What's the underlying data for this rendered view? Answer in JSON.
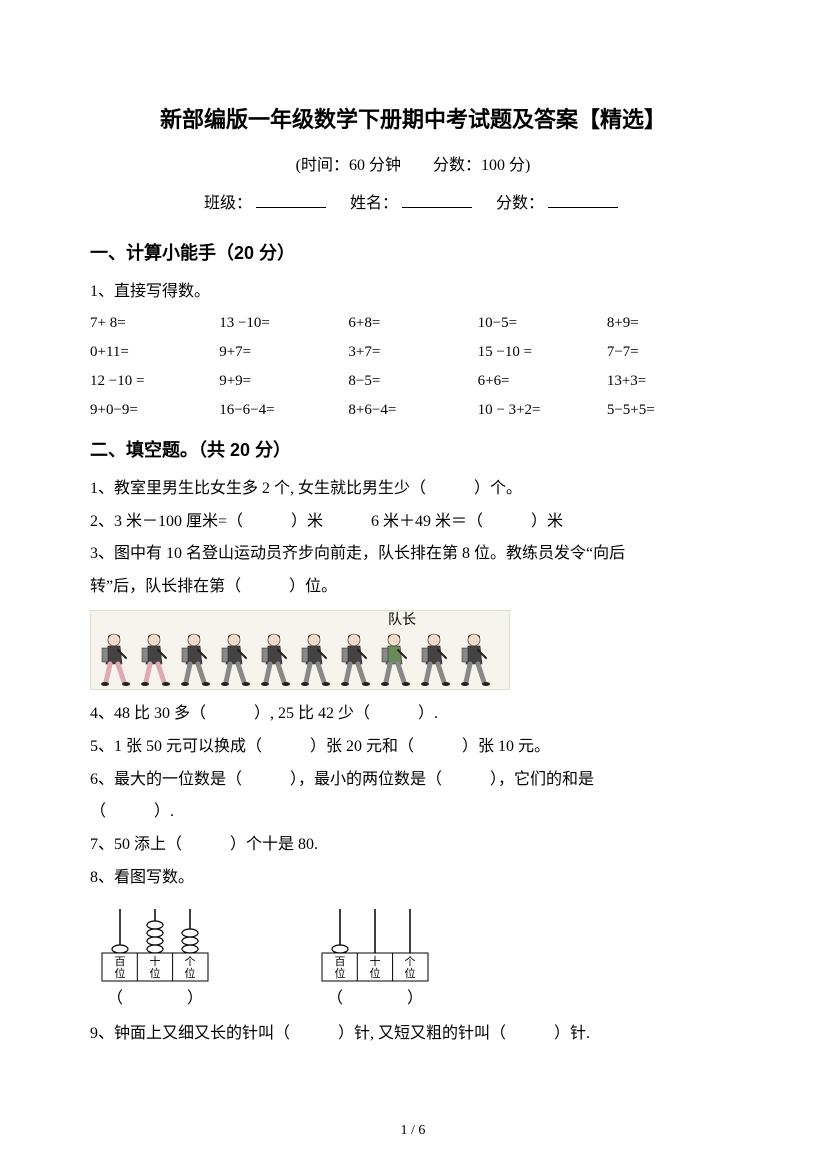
{
  "title": "新部编版一年级数学下册期中考试题及答案【精选】",
  "subtitle": "(时间：60 分钟　　分数：100 分)",
  "info": {
    "class_label": "班级：",
    "name_label": "姓名：",
    "score_label": "分数："
  },
  "section1": {
    "heading": "一、计算小能手（20 分）",
    "q1_label": "1、直接写得数。",
    "rows": [
      [
        "7+ 8=",
        "13 −10=",
        "6+8=",
        "10−5=",
        "8+9="
      ],
      [
        "0+11=",
        "9+7=",
        "3+7=",
        "15 −10 =",
        "7−7="
      ],
      [
        "12 −10 =",
        "9+9=",
        "8−5=",
        "6+6=",
        "13+3="
      ],
      [
        "9+0−9=",
        "16−6−4=",
        "8+6−4=",
        "10 − 3+2=",
        "5−5+5="
      ]
    ]
  },
  "section2": {
    "heading": "二、填空题。（共 20 分）",
    "q1": "1、教室里男生比女生多 2 个, 女生就比男生少（　　　）个。",
    "q2": "2、3 米－100 厘米=（　　　）米　　　6 米＋49 米＝（　　　）米",
    "q3a": "3、图中有 10 名登山运动员齐步向前走，队长排在第 8 位。教练员发令“向后",
    "q3b": "转”后，队长排在第（　　　）位。",
    "figure_label": "队长",
    "q4": "4、48 比 30 多（　　　）, 25 比 42 少（　　　）.",
    "q5": "5、1 张 50 元可以换成（　　　）张 20 元和（　　　）张 10 元。",
    "q6a": "6、最大的一位数是（　　　），最小的两位数是（　　　），它们的和是",
    "q6b": "（　　　）.",
    "q7": "7、50 添上（　　　）个十是 80.",
    "q8": "8、看图写数。",
    "abacus_labels": {
      "h": "百位",
      "t": "十位",
      "o": "个位"
    },
    "q8_ans": "（　　　　）",
    "q9": "9、钟面上又细又长的针叫（　　　）针, 又短又粗的针叫（　　　）针."
  },
  "page": "1 / 6",
  "colors": {
    "pink": "#e0a8b0",
    "gray": "#888888",
    "dark": "#444444",
    "green": "#6a8a5a",
    "black": "#000000"
  }
}
